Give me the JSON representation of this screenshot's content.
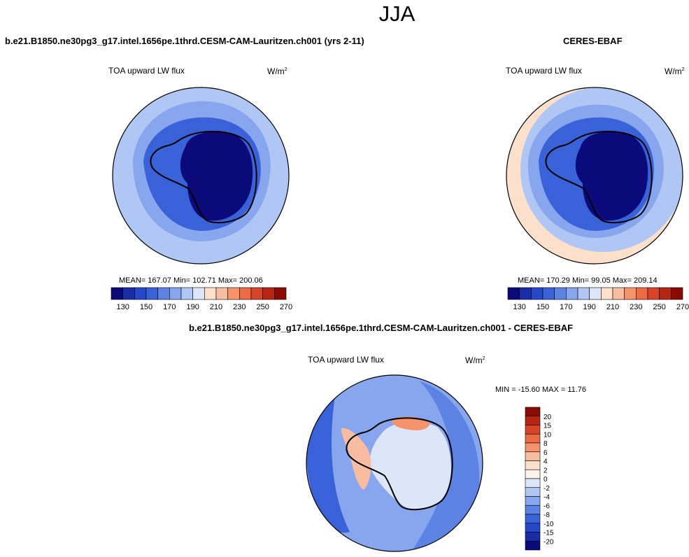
{
  "page_title": "JJA",
  "panels": {
    "model": {
      "run_title": "b.e21.B1850.ne30pg3_g17.intel.1656pe.1thrd.CESM-CAM-Lauritzen.ch001 (yrs 2-11)",
      "variable": "TOA upward LW flux",
      "units_base": "W/m",
      "units_exp": "2",
      "stats_text": "MEAN= 167.07  Min= 102.71  Max= 200.06"
    },
    "obs": {
      "run_title": "CERES-EBAF",
      "variable": "TOA upward LW flux",
      "units_base": "W/m",
      "units_exp": "2",
      "stats_text": "MEAN= 170.29  Min=  99.05  Max= 209.14"
    },
    "diff": {
      "run_title": "b.e21.B1850.ne30pg3_g17.intel.1656pe.1thrd.CESM-CAM-Lauritzen.ch001 - CERES-EBAF",
      "variable": "TOA upward LW flux",
      "units_base": "W/m",
      "units_exp": "2",
      "stats_text": "MIN = -15.60 MAX =  11.76"
    }
  },
  "chart_data": [
    {
      "type": "heatmap",
      "projection": "south-polar-stereographic",
      "title": "TOA upward LW flux",
      "subtitle": "b.e21.B1850.ne30pg3_g17.intel.1656pe.1thrd.CESM-CAM-Lauritzen.ch001 (yrs 2-11)",
      "units": "W/m2",
      "mean": 167.07,
      "min": 102.71,
      "max": 200.06,
      "colorbar_levels": [
        130,
        140,
        150,
        160,
        170,
        180,
        190,
        200,
        210,
        220,
        230,
        240,
        250,
        260,
        270
      ],
      "colorbar_labels": [
        "130",
        "150",
        "170",
        "190",
        "210",
        "230",
        "250",
        "270"
      ],
      "colorbar_colors": [
        "#0a0a7a",
        "#1a2ca8",
        "#2448c8",
        "#3a62d8",
        "#5c82e4",
        "#88a6ee",
        "#b0c6f4",
        "#dce6f8",
        "#fce0cc",
        "#f8bca0",
        "#f4936c",
        "#ec6a44",
        "#d8442a",
        "#b82412",
        "#8a0a04"
      ],
      "regions": [
        {
          "name": "ocean-far",
          "value": 185
        },
        {
          "name": "ocean-mid",
          "value": 175
        },
        {
          "name": "coast-ring",
          "value": 158
        },
        {
          "name": "antarctic-interior",
          "value": 115
        }
      ]
    },
    {
      "type": "heatmap",
      "projection": "south-polar-stereographic",
      "title": "TOA upward LW flux",
      "subtitle": "CERES-EBAF",
      "units": "W/m2",
      "mean": 170.29,
      "min": 99.05,
      "max": 209.14,
      "colorbar_levels": [
        130,
        140,
        150,
        160,
        170,
        180,
        190,
        200,
        210,
        220,
        230,
        240,
        250,
        260,
        270
      ],
      "colorbar_labels": [
        "130",
        "150",
        "170",
        "190",
        "210",
        "230",
        "250",
        "270"
      ],
      "colorbar_colors": [
        "#0a0a7a",
        "#1a2ca8",
        "#2448c8",
        "#3a62d8",
        "#5c82e4",
        "#88a6ee",
        "#b0c6f4",
        "#dce6f8",
        "#fce0cc",
        "#f8bca0",
        "#f4936c",
        "#ec6a44",
        "#d8442a",
        "#b82412",
        "#8a0a04"
      ],
      "regions": [
        {
          "name": "ocean-outer-edge",
          "value": 205
        },
        {
          "name": "ocean-far",
          "value": 185
        },
        {
          "name": "ocean-mid",
          "value": 175
        },
        {
          "name": "coast-ring",
          "value": 158
        },
        {
          "name": "antarctic-interior",
          "value": 112
        }
      ]
    },
    {
      "type": "heatmap",
      "projection": "south-polar-stereographic",
      "title": "TOA upward LW flux",
      "subtitle": "b.e21.B1850.ne30pg3_g17.intel.1656pe.1thrd.CESM-CAM-Lauritzen.ch001 - CERES-EBAF",
      "units": "W/m2",
      "min": -15.6,
      "max": 11.76,
      "colorbar_levels": [
        -20,
        -15,
        -10,
        -8,
        -6,
        -4,
        -2,
        0,
        2,
        4,
        6,
        8,
        10,
        15,
        20
      ],
      "colorbar_labels": [
        "20",
        "15",
        "10",
        "8",
        "6",
        "4",
        "2",
        "0",
        "-2",
        "-4",
        "-6",
        "-8",
        "-10",
        "-15",
        "-20"
      ],
      "colorbar_colors": [
        "#8a0a04",
        "#b82412",
        "#d8442a",
        "#ec6a44",
        "#f4936c",
        "#f8bca0",
        "#fce0cc",
        "#fbf2ea",
        "#dce6f8",
        "#b0c6f4",
        "#88a6ee",
        "#5c82e4",
        "#3a62d8",
        "#2448c8",
        "#1a2ca8",
        "#0a0a7a"
      ],
      "regions": [
        {
          "name": "ocean-background",
          "value": -4
        },
        {
          "name": "atlantic-indian-sector",
          "value": -9
        },
        {
          "name": "antarctic-peninsula",
          "value": 4
        },
        {
          "name": "east-antarctic-rim",
          "value": 7
        },
        {
          "name": "interior-mixed",
          "value": -2
        }
      ]
    }
  ]
}
